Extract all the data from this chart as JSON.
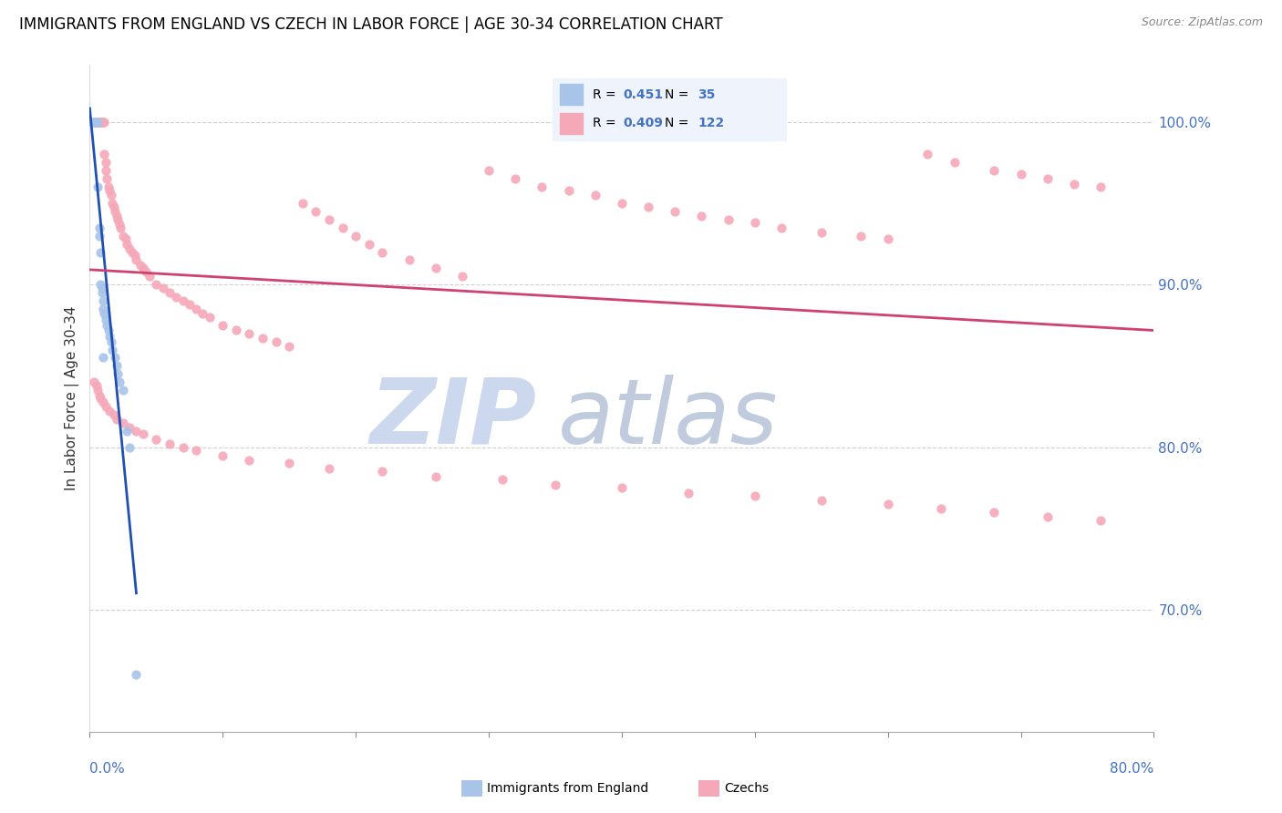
{
  "title": "IMMIGRANTS FROM ENGLAND VS CZECH IN LABOR FORCE | AGE 30-34 CORRELATION CHART",
  "source": "Source: ZipAtlas.com",
  "ylabel": "In Labor Force | Age 30-34",
  "xmin": 0.0,
  "xmax": 0.8,
  "ymin": 0.625,
  "ymax": 1.035,
  "england_R": 0.451,
  "england_N": 35,
  "czech_R": 0.409,
  "czech_N": 122,
  "england_color": "#a8c4e8",
  "czech_color": "#f5a8b8",
  "england_line_color": "#2050b0",
  "czech_line_color": "#d04070",
  "legend_bg": "#eef3fc",
  "watermark_zip_color": "#c8d8ee",
  "watermark_atlas_color": "#c8d8ee",
  "grid_color": "#d0d0d0",
  "right_tick_color": "#4472c4",
  "bottom_label_color": "#4472c4",
  "england_x": [
    0.002,
    0.003,
    0.004,
    0.004,
    0.005,
    0.005,
    0.005,
    0.005,
    0.005,
    0.006,
    0.006,
    0.007,
    0.007,
    0.008,
    0.008,
    0.009,
    0.009,
    0.01,
    0.01,
    0.01,
    0.011,
    0.012,
    0.013,
    0.014,
    0.015,
    0.016,
    0.017,
    0.019,
    0.02,
    0.021,
    0.022,
    0.025,
    0.028,
    0.03,
    0.035
  ],
  "england_y": [
    1.0,
    1.0,
    1.0,
    1.0,
    1.0,
    1.0,
    1.0,
    1.0,
    1.0,
    1.0,
    0.96,
    0.935,
    0.93,
    0.92,
    0.9,
    0.898,
    0.895,
    0.89,
    0.885,
    0.855,
    0.882,
    0.878,
    0.875,
    0.872,
    0.868,
    0.865,
    0.86,
    0.855,
    0.85,
    0.845,
    0.84,
    0.835,
    0.81,
    0.8,
    0.66
  ],
  "czech_x": [
    0.003,
    0.004,
    0.004,
    0.005,
    0.005,
    0.006,
    0.007,
    0.007,
    0.008,
    0.008,
    0.009,
    0.009,
    0.01,
    0.01,
    0.011,
    0.011,
    0.012,
    0.012,
    0.013,
    0.014,
    0.015,
    0.016,
    0.017,
    0.018,
    0.019,
    0.02,
    0.021,
    0.022,
    0.023,
    0.025,
    0.027,
    0.028,
    0.03,
    0.032,
    0.034,
    0.035,
    0.038,
    0.04,
    0.042,
    0.045,
    0.05,
    0.055,
    0.06,
    0.065,
    0.07,
    0.075,
    0.08,
    0.085,
    0.09,
    0.1,
    0.11,
    0.12,
    0.13,
    0.14,
    0.15,
    0.16,
    0.17,
    0.18,
    0.19,
    0.2,
    0.21,
    0.22,
    0.24,
    0.26,
    0.28,
    0.3,
    0.32,
    0.34,
    0.36,
    0.38,
    0.4,
    0.42,
    0.44,
    0.46,
    0.48,
    0.5,
    0.52,
    0.55,
    0.58,
    0.6,
    0.63,
    0.65,
    0.68,
    0.7,
    0.72,
    0.74,
    0.76,
    0.003,
    0.005,
    0.006,
    0.007,
    0.008,
    0.01,
    0.012,
    0.015,
    0.018,
    0.02,
    0.025,
    0.03,
    0.035,
    0.04,
    0.05,
    0.06,
    0.07,
    0.08,
    0.1,
    0.12,
    0.15,
    0.18,
    0.22,
    0.26,
    0.31,
    0.35,
    0.4,
    0.45,
    0.5,
    0.55,
    0.6,
    0.64,
    0.68,
    0.72,
    0.76
  ],
  "czech_y": [
    1.0,
    1.0,
    1.0,
    1.0,
    1.0,
    1.0,
    1.0,
    1.0,
    1.0,
    1.0,
    1.0,
    1.0,
    1.0,
    1.0,
    1.0,
    0.98,
    0.975,
    0.97,
    0.965,
    0.96,
    0.958,
    0.955,
    0.95,
    0.948,
    0.945,
    0.942,
    0.94,
    0.937,
    0.935,
    0.93,
    0.928,
    0.925,
    0.922,
    0.92,
    0.918,
    0.915,
    0.912,
    0.91,
    0.908,
    0.905,
    0.9,
    0.898,
    0.895,
    0.892,
    0.89,
    0.888,
    0.885,
    0.882,
    0.88,
    0.875,
    0.872,
    0.87,
    0.867,
    0.865,
    0.862,
    0.95,
    0.945,
    0.94,
    0.935,
    0.93,
    0.925,
    0.92,
    0.915,
    0.91,
    0.905,
    0.97,
    0.965,
    0.96,
    0.958,
    0.955,
    0.95,
    0.948,
    0.945,
    0.942,
    0.94,
    0.938,
    0.935,
    0.932,
    0.93,
    0.928,
    0.98,
    0.975,
    0.97,
    0.968,
    0.965,
    0.962,
    0.96,
    0.84,
    0.838,
    0.835,
    0.832,
    0.83,
    0.828,
    0.825,
    0.822,
    0.82,
    0.817,
    0.815,
    0.812,
    0.81,
    0.808,
    0.805,
    0.802,
    0.8,
    0.798,
    0.795,
    0.792,
    0.79,
    0.787,
    0.785,
    0.782,
    0.78,
    0.777,
    0.775,
    0.772,
    0.77,
    0.767,
    0.765,
    0.762,
    0.76,
    0.757,
    0.755
  ]
}
